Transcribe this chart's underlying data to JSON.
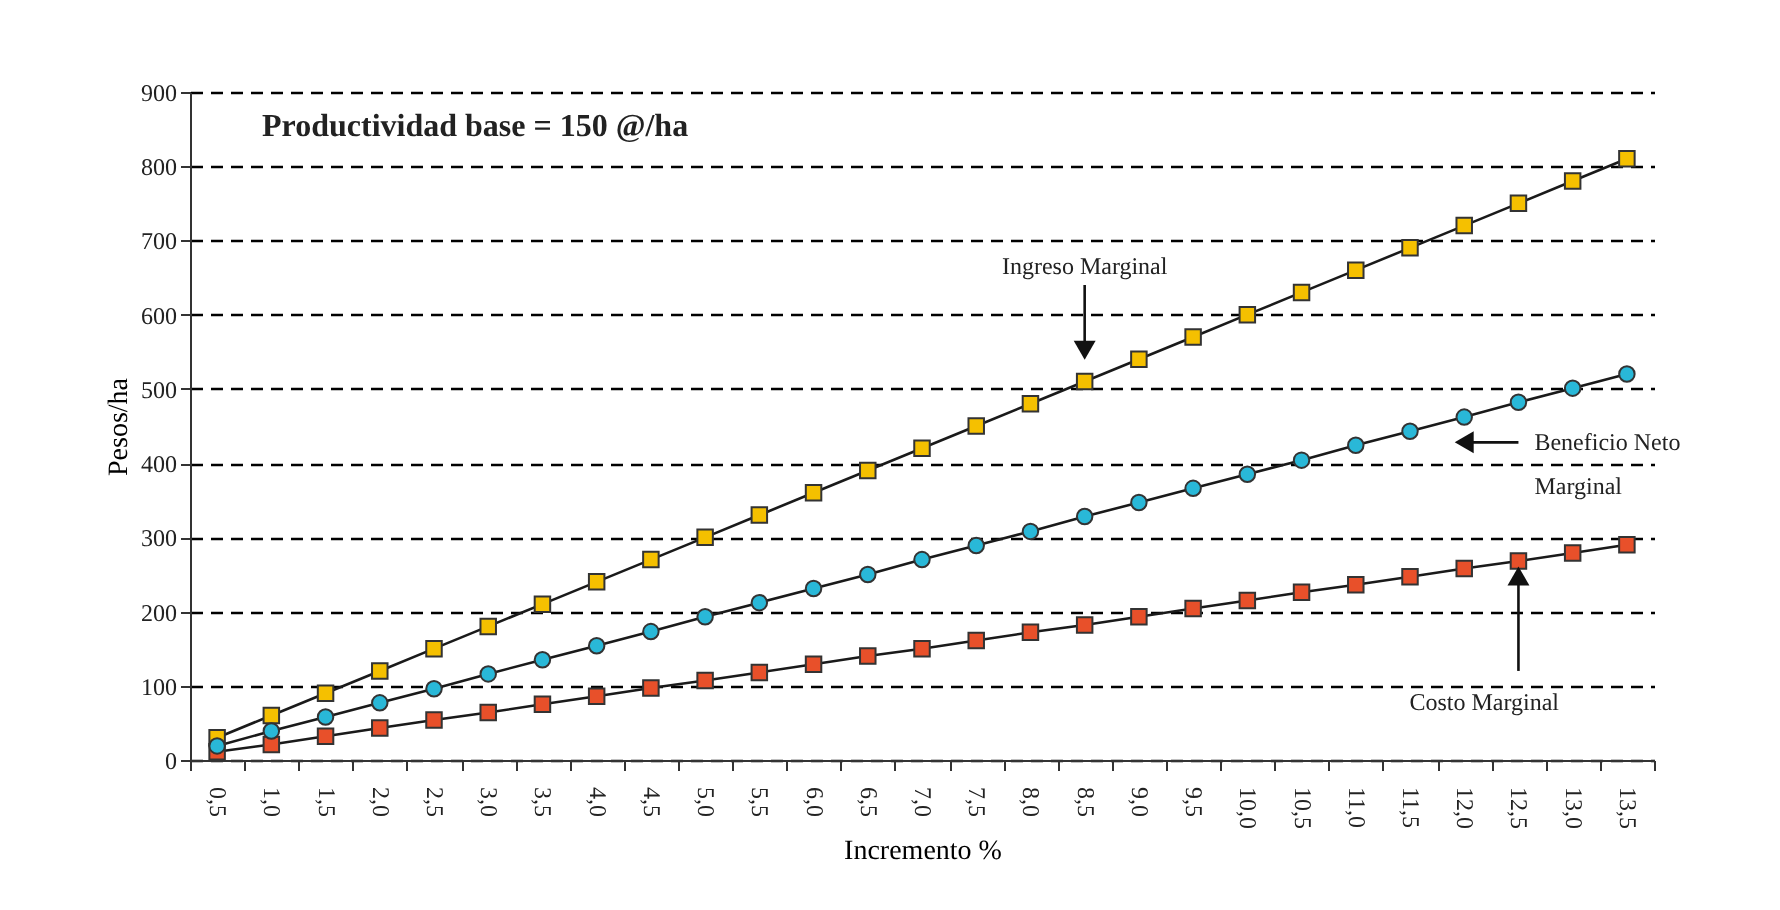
{
  "chart_data": {
    "type": "line",
    "annotations": [
      "Productividad base = 150 @/ha"
    ],
    "xlabel": "Incremento %",
    "ylabel": "Pesos/ha",
    "categories": [
      "0,5",
      "1,0",
      "1,5",
      "2,0",
      "2,5",
      "3,0",
      "3,5",
      "4,0",
      "4,5",
      "5,0",
      "5,5",
      "6,0",
      "6,5",
      "7,0",
      "7,5",
      "8,0",
      "8,5",
      "9,0",
      "9,5",
      "10,0",
      "10,5",
      "11,0",
      "11,5",
      "12,0",
      "12,5",
      "13,0",
      "13,5"
    ],
    "series": [
      {
        "name": "Ingreso Marginal",
        "color": "#f5c000",
        "marker": "square",
        "values": [
          30,
          60,
          90,
          120,
          150,
          180,
          210,
          240,
          270,
          300,
          330,
          360,
          390,
          420,
          450,
          480,
          510,
          540,
          570,
          600,
          630,
          660,
          690,
          720,
          750,
          780,
          810
        ]
      },
      {
        "name": "Beneficio Neto Marginal",
        "color": "#29b8d8",
        "marker": "circle",
        "values": [
          19,
          39,
          58,
          77,
          96,
          116,
          135,
          154,
          173,
          193,
          212,
          231,
          250,
          270,
          289,
          308,
          328,
          347,
          366,
          385,
          404,
          424,
          443,
          462,
          482,
          501,
          520
        ]
      },
      {
        "name": "Costo Marginal",
        "color": "#e8502a",
        "marker": "square",
        "values": [
          11,
          21,
          32,
          43,
          54,
          64,
          75,
          86,
          97,
          107,
          118,
          129,
          140,
          150,
          161,
          172,
          182,
          193,
          204,
          215,
          226,
          236,
          247,
          258,
          268,
          279,
          290
        ]
      }
    ],
    "ylim": [
      0,
      900
    ],
    "yticks": [
      0,
      100,
      200,
      300,
      400,
      500,
      600,
      700,
      800,
      900
    ],
    "grid": "y",
    "line_style": "solid"
  }
}
